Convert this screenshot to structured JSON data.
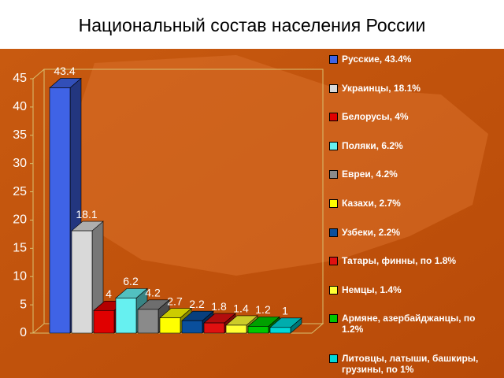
{
  "chart_data": {
    "type": "bar3d",
    "title": "Национальный состав населения России",
    "categories": [
      "Русские, 43.4%",
      "Украинцы, 18.1%",
      "Белорусы, 4%",
      "Поляки, 6.2%",
      "Евреи, 4.2%",
      "Казахи, 2.7%",
      "Узбеки, 2.2%",
      "Татары, финны, по 1.8%",
      "Немцы, 1.4%",
      "Армяне, азербайджанцы, по 1.2%",
      "Литовцы, латыши, башкиры, грузины, по 1%"
    ],
    "values": [
      43.4,
      18.1,
      4,
      6.2,
      4.2,
      2.7,
      2.2,
      1.8,
      1.4,
      1.2,
      1
    ],
    "colors": [
      "#3f63e6",
      "#d9d9d9",
      "#e00000",
      "#66f0f0",
      "#8a8a8a",
      "#ffff00",
      "#0a4f9c",
      "#e01010",
      "#ffff33",
      "#00c800",
      "#00d8d8"
    ],
    "ylim": [
      0,
      45
    ],
    "yticks": [
      0,
      5,
      10,
      15,
      20,
      25,
      30,
      35,
      40,
      45
    ]
  }
}
